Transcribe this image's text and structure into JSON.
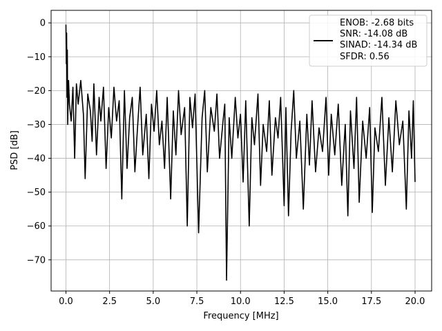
{
  "chart_data": {
    "type": "line",
    "title": "",
    "xlabel": "Frequency [MHz]",
    "ylabel": "PSD [dB]",
    "xlim": [
      -0.85,
      20.95
    ],
    "ylim": [
      -79.2,
      3.7
    ],
    "grid": true,
    "x_ticks": [
      0.0,
      2.5,
      5.0,
      7.5,
      10.0,
      12.5,
      15.0,
      17.5,
      20.0
    ],
    "x_tick_labels": [
      "0.0",
      "2.5",
      "5.0",
      "7.5",
      "10.0",
      "12.5",
      "15.0",
      "17.5",
      "20.0"
    ],
    "y_ticks": [
      0,
      -10,
      -20,
      -30,
      -40,
      -50,
      -60,
      -70
    ],
    "y_tick_labels": [
      "0",
      "−10",
      "−20",
      "−30",
      "−40",
      "−50",
      "−60",
      "−70"
    ],
    "legend": {
      "position": "top-right",
      "lines": [
        "ENOB: -2.68 bits",
        "SNR: -14.08 dB",
        "SINAD: -14.34 dB",
        "SFDR: 0.56"
      ]
    },
    "series": [
      {
        "color": "#000000",
        "x": [
          0.0,
          0.02,
          0.04,
          0.06,
          0.08,
          0.1,
          0.15,
          0.2,
          0.3,
          0.4,
          0.5,
          0.6,
          0.7,
          0.85,
          1.0,
          1.1,
          1.25,
          1.4,
          1.5,
          1.6,
          1.75,
          1.9,
          2.0,
          2.15,
          2.3,
          2.45,
          2.6,
          2.75,
          2.9,
          3.05,
          3.2,
          3.35,
          3.5,
          3.65,
          3.8,
          3.95,
          4.1,
          4.25,
          4.4,
          4.6,
          4.75,
          4.9,
          5.05,
          5.2,
          5.35,
          5.5,
          5.65,
          5.8,
          6.0,
          6.15,
          6.3,
          6.45,
          6.6,
          6.8,
          6.95,
          7.1,
          7.25,
          7.4,
          7.6,
          7.8,
          7.95,
          8.1,
          8.3,
          8.5,
          8.65,
          8.8,
          9.0,
          9.1,
          9.2,
          9.35,
          9.5,
          9.7,
          9.85,
          10.0,
          10.15,
          10.3,
          10.5,
          10.65,
          10.8,
          11.0,
          11.15,
          11.3,
          11.5,
          11.65,
          11.8,
          12.0,
          12.15,
          12.3,
          12.5,
          12.6,
          12.75,
          12.9,
          13.05,
          13.2,
          13.4,
          13.6,
          13.8,
          13.95,
          14.1,
          14.3,
          14.5,
          14.7,
          14.9,
          15.05,
          15.2,
          15.4,
          15.6,
          15.8,
          16.0,
          16.15,
          16.3,
          16.5,
          16.65,
          16.8,
          17.0,
          17.2,
          17.4,
          17.55,
          17.7,
          17.9,
          18.1,
          18.3,
          18.5,
          18.7,
          18.9,
          19.1,
          19.3,
          19.5,
          19.65,
          19.8,
          19.9,
          20.0
        ],
        "y": [
          -0.5,
          -12,
          -3,
          -22,
          -8,
          -30,
          -17,
          -24,
          -29,
          -19,
          -40,
          -18,
          -24,
          -17,
          -27,
          -46,
          -21,
          -26,
          -35,
          -18,
          -39,
          -22,
          -29,
          -19,
          -43,
          -25,
          -34,
          -19,
          -29,
          -23,
          -52,
          -20,
          -43,
          -28,
          -22,
          -44,
          -31,
          -19,
          -39,
          -27,
          -46,
          -24,
          -32,
          -20,
          -36,
          -29,
          -43,
          -22,
          -52,
          -26,
          -39,
          -20,
          -33,
          -25,
          -60,
          -22,
          -31,
          -21,
          -62,
          -28,
          -20,
          -44,
          -25,
          -32,
          -21,
          -40,
          -29,
          -24,
          -76,
          -28,
          -40,
          -22,
          -34,
          -27,
          -47,
          -23,
          -60,
          -28,
          -36,
          -21,
          -48,
          -30,
          -38,
          -23,
          -45,
          -28,
          -34,
          -22,
          -54,
          -25,
          -57,
          -32,
          -20,
          -40,
          -29,
          -55,
          -27,
          -42,
          -23,
          -44,
          -31,
          -38,
          -22,
          -45,
          -27,
          -39,
          -24,
          -48,
          -30,
          -57,
          -26,
          -43,
          -22,
          -53,
          -29,
          -40,
          -25,
          -56,
          -31,
          -38,
          -22,
          -48,
          -28,
          -44,
          -23,
          -36,
          -29,
          -55,
          -26,
          -40,
          -23,
          -47
        ]
      }
    ]
  }
}
